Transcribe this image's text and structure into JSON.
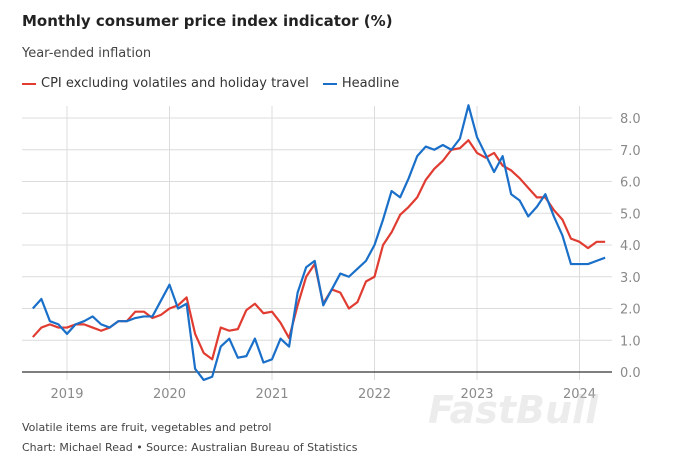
{
  "chart_data": {
    "type": "line",
    "title": "Monthly consumer price index indicator (%)",
    "subtitle": "Year-ended inflation",
    "xlabel": "",
    "ylabel": "",
    "ylim": [
      0,
      8.5
    ],
    "y_ticks": [
      "0.0",
      "1.0",
      "2.0",
      "3.0",
      "4.0",
      "5.0",
      "6.0",
      "7.0",
      "8.0"
    ],
    "x_ticks": [
      "2019",
      "2020",
      "2021",
      "2022",
      "2023",
      "2024"
    ],
    "x_start": "2018-09",
    "x_end": "2024-04",
    "grid": true,
    "y_axis_position": "right",
    "legend_position": "top-left",
    "series": [
      {
        "name": "CPI excluding volatiles and holiday travel",
        "color": "#e03c31",
        "values": [
          1.1,
          1.4,
          1.5,
          1.4,
          1.4,
          1.5,
          1.5,
          1.4,
          1.3,
          1.4,
          1.6,
          1.6,
          1.9,
          1.9,
          1.7,
          1.8,
          2.0,
          2.1,
          2.35,
          1.2,
          0.6,
          0.4,
          1.4,
          1.3,
          1.35,
          1.95,
          2.15,
          1.85,
          1.9,
          1.55,
          1.07,
          2.1,
          3.0,
          3.4,
          2.15,
          2.6,
          2.5,
          2.0,
          2.2,
          2.85,
          3.0,
          4.0,
          4.4,
          4.95,
          5.2,
          5.5,
          6.05,
          6.4,
          6.65,
          7.0,
          7.05,
          7.3,
          6.9,
          6.75,
          6.9,
          6.5,
          6.35,
          6.1,
          5.8,
          5.5,
          5.5,
          5.1,
          4.8,
          4.2,
          4.1,
          3.9,
          4.1,
          4.1
        ]
      },
      {
        "name": "Headline",
        "color": "#1a6fc9",
        "values": [
          2.0,
          2.3,
          1.6,
          1.5,
          1.2,
          1.5,
          1.6,
          1.75,
          1.5,
          1.4,
          1.6,
          1.6,
          1.7,
          1.75,
          1.75,
          2.25,
          2.75,
          2.0,
          2.15,
          0.1,
          -0.25,
          -0.15,
          0.8,
          1.05,
          0.45,
          0.5,
          1.05,
          0.3,
          0.4,
          1.05,
          0.8,
          2.5,
          3.3,
          3.5,
          2.1,
          2.6,
          3.1,
          3.0,
          3.25,
          3.5,
          4.0,
          4.8,
          5.7,
          5.5,
          6.1,
          6.8,
          7.1,
          7.0,
          7.15,
          7.0,
          7.35,
          8.4,
          7.4,
          6.85,
          6.3,
          6.8,
          5.6,
          5.4,
          4.9,
          5.2,
          5.6,
          4.9,
          4.3,
          3.4,
          3.4,
          3.4,
          3.5,
          3.6
        ]
      }
    ]
  },
  "footer": {
    "note": "Volatile items are fruit, vegetables and petrol",
    "source": "Chart: Michael Read • Source: Australian Bureau of Statistics"
  },
  "watermark": "FastBull"
}
